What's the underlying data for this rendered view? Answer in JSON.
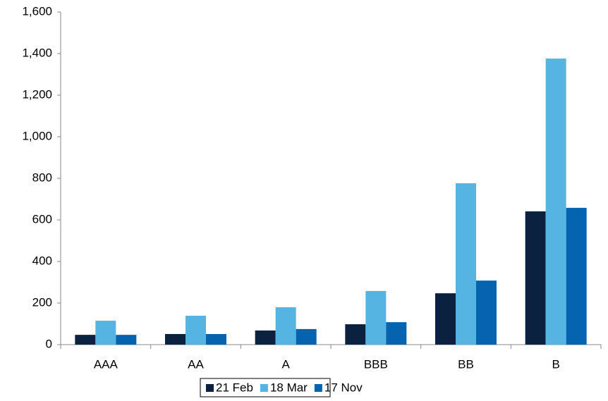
{
  "chart_data": {
    "type": "bar",
    "categories": [
      "AAA",
      "AA",
      "A",
      "BBB",
      "BB",
      "B"
    ],
    "series": [
      {
        "name": "21 Feb",
        "color": "#0a2240",
        "values": [
          47,
          51,
          68,
          98,
          247,
          641
        ]
      },
      {
        "name": "18 Mar",
        "color": "#56b4e3",
        "values": [
          115,
          139,
          180,
          258,
          776,
          1376
        ]
      },
      {
        "name": "17 Nov",
        "color": "#0563b0",
        "values": [
          47,
          51,
          75,
          108,
          308,
          658
        ]
      }
    ],
    "ylim": [
      0,
      1600
    ],
    "yticks": [
      0,
      200,
      400,
      600,
      800,
      {
        "value": 1000,
        "label": "1,000"
      },
      {
        "value": 1200,
        "label": "1,200"
      },
      {
        "value": 1400,
        "label": "1,400"
      },
      {
        "value": 1600,
        "label": "1,600"
      }
    ],
    "grid": false,
    "legend": "bottom"
  }
}
